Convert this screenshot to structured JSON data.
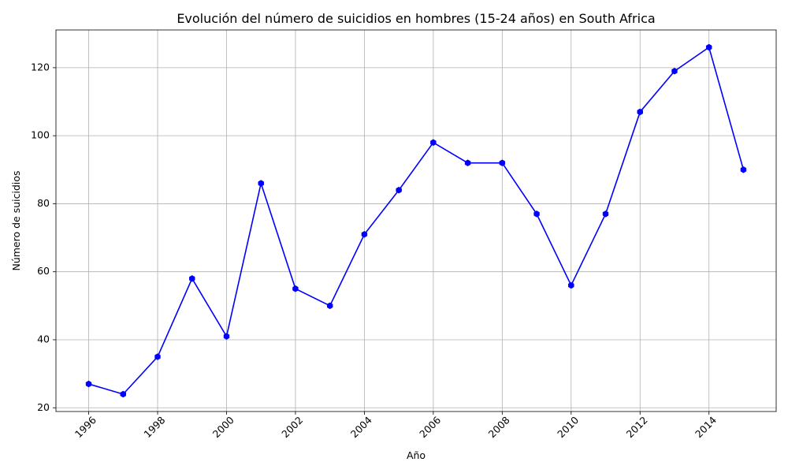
{
  "chart_data": {
    "type": "line",
    "title": "Evolución del número de suicidios en hombres (15-24 años) en South Africa",
    "xlabel": "Año",
    "ylabel": "Número de suicidios",
    "x": [
      1996,
      1997,
      1998,
      1999,
      2000,
      2001,
      2002,
      2003,
      2004,
      2005,
      2006,
      2007,
      2008,
      2009,
      2010,
      2011,
      2012,
      2013,
      2014,
      2015
    ],
    "series": [
      {
        "values": [
          27,
          24,
          35,
          58,
          41,
          86,
          55,
          50,
          71,
          84,
          98,
          92,
          92,
          77,
          56,
          77,
          107,
          119,
          126,
          90
        ],
        "color": "#0000ff",
        "marker": "hexagon"
      }
    ],
    "xticks": [
      "1996",
      "1998",
      "2000",
      "2002",
      "2004",
      "2006",
      "2008",
      "2010",
      "2012",
      "2014"
    ],
    "yticks": [
      "20",
      "40",
      "60",
      "80",
      "100",
      "120"
    ],
    "xlim": [
      1995.05,
      2015.95
    ],
    "ylim": [
      18.9,
      131.1
    ],
    "grid": true,
    "xtick_rotation": 45
  }
}
